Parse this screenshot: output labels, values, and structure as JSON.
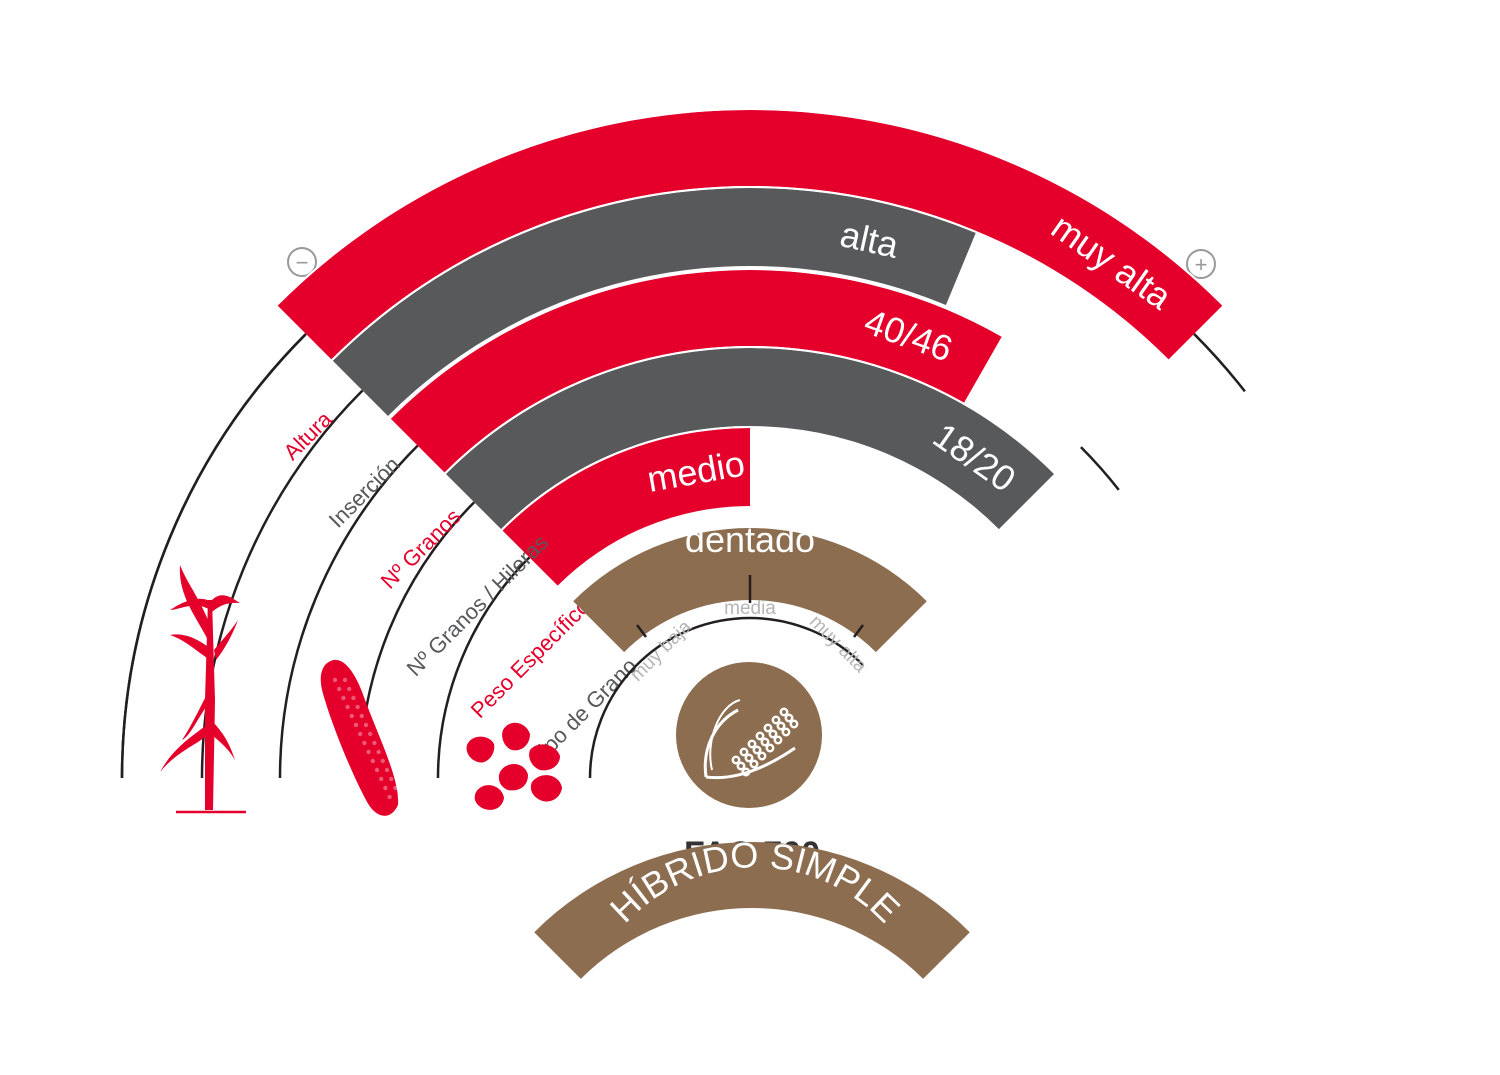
{
  "colors": {
    "red": "#e4002b",
    "dark": "#58595b",
    "brown": "#8c6d4f",
    "line": "#231f20",
    "muted": "#b5b5b5"
  },
  "scale": {
    "min_sign": "−",
    "max_sign": "+"
  },
  "traits": [
    {
      "name": "Altura",
      "value": "muy alta",
      "level": 1.0,
      "color": "red",
      "label_color": "red",
      "icon": "corn-plant-icon"
    },
    {
      "name": "Inserción",
      "value": "alta",
      "level": 0.75,
      "color": "dark",
      "label_color": "dark",
      "icon": ""
    },
    {
      "name": "Nº Granos",
      "value": "40/46",
      "level": 0.83,
      "color": "red",
      "label_color": "red",
      "icon": "corn-ear-icon"
    },
    {
      "name": "Nº Granos / Hileras",
      "value": "18/20",
      "level": 1.0,
      "color": "dark",
      "label_color": "dark",
      "icon": ""
    },
    {
      "name": "Peso Específico",
      "value": "medio",
      "level": 0.5,
      "color": "red",
      "label_color": "red",
      "icon": "corn-kernels-icon"
    },
    {
      "name": "Tipo de Grano",
      "value": "dentado",
      "level": null,
      "color": "brown",
      "label_color": "dark",
      "icon": ""
    }
  ],
  "grain_scale": [
    "muy baja",
    "media",
    "muy alta"
  ],
  "center_icon": "corn-cob-icon",
  "fao": "FAO 700",
  "hybrid": "HÍBRIDO SIMPLE"
}
